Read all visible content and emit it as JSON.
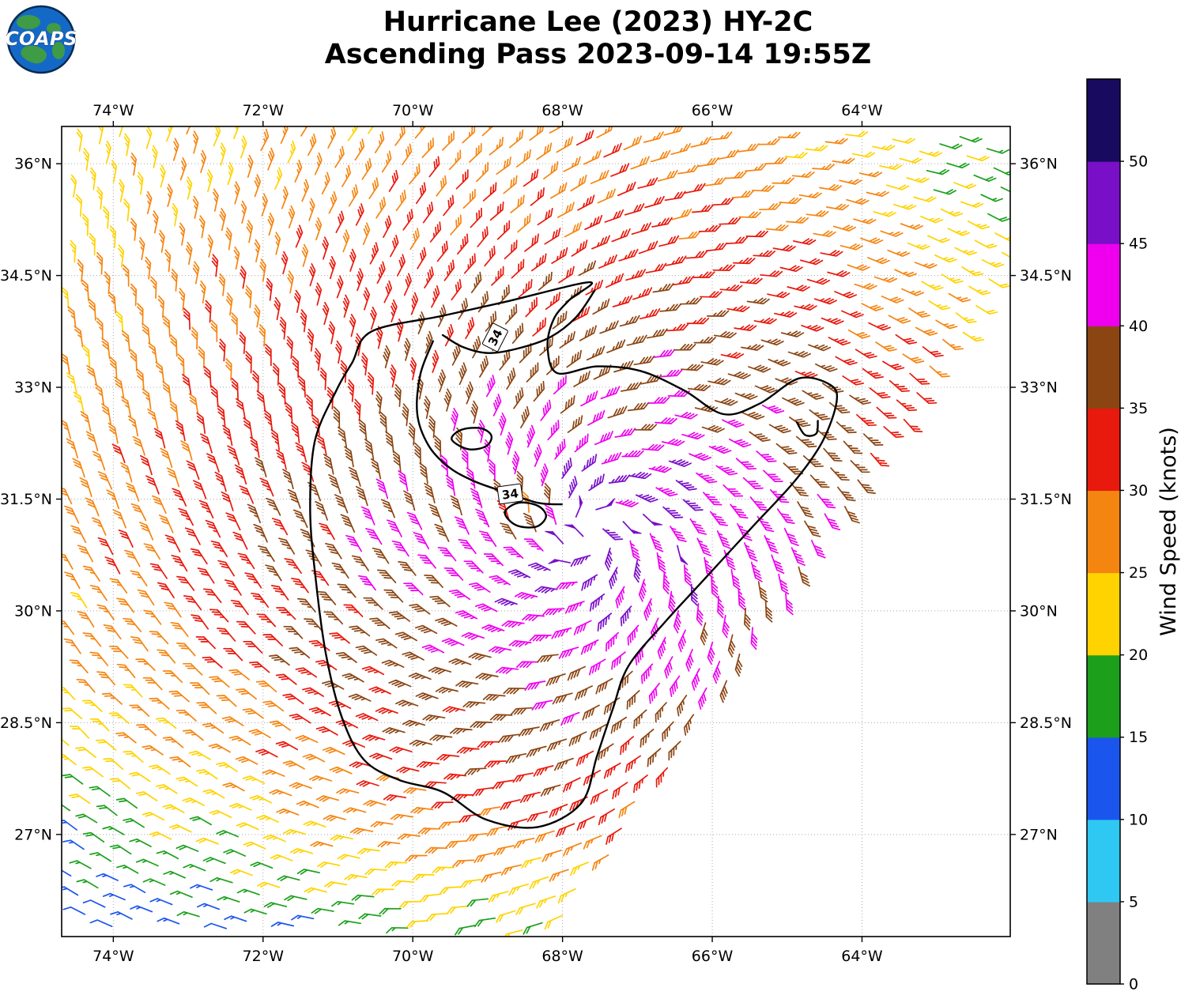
{
  "logo": {
    "text": "COAPS"
  },
  "title": {
    "line1": "Hurricane Lee (2023) HY-2C",
    "line2": "Ascending Pass 2023-09-14 19:55Z"
  },
  "chart_data": {
    "type": "scatter",
    "subtype": "wind-barb-field",
    "grid": true,
    "projection": {
      "lon_range": [
        -74.69,
        -62.02
      ],
      "lat_range": [
        25.63,
        36.5
      ]
    },
    "x_axis": {
      "ticks": [
        {
          "value": -74,
          "label": "74°W"
        },
        {
          "value": -72,
          "label": "72°W"
        },
        {
          "value": -70,
          "label": "70°W"
        },
        {
          "value": -68,
          "label": "68°W"
        },
        {
          "value": -66,
          "label": "66°W"
        },
        {
          "value": -64,
          "label": "64°W"
        }
      ]
    },
    "y_axis": {
      "ticks": [
        {
          "value": 36,
          "label": "36°N"
        },
        {
          "value": 34.5,
          "label": "34.5°N"
        },
        {
          "value": 33,
          "label": "33°N"
        },
        {
          "value": 31.5,
          "label": "31.5°N"
        },
        {
          "value": 30,
          "label": "30°N"
        },
        {
          "value": 28.5,
          "label": "28.5°N"
        },
        {
          "value": 27,
          "label": "27°N"
        }
      ]
    },
    "colorbar": {
      "label": "Wind Speed (knots)",
      "tick_values": [
        0,
        5,
        10,
        15,
        20,
        25,
        30,
        35,
        40,
        45,
        50
      ],
      "bins": [
        {
          "range": [
            0,
            5
          ],
          "color": "#808080"
        },
        {
          "range": [
            5,
            10
          ],
          "color": "#2FC8F2"
        },
        {
          "range": [
            10,
            15
          ],
          "color": "#1A55EE"
        },
        {
          "range": [
            15,
            20
          ],
          "color": "#1CA01C"
        },
        {
          "range": [
            20,
            25
          ],
          "color": "#FFD300"
        },
        {
          "range": [
            25,
            30
          ],
          "color": "#F58511"
        },
        {
          "range": [
            30,
            35
          ],
          "color": "#E8190D"
        },
        {
          "range": [
            35,
            40
          ],
          "color": "#8B4513"
        },
        {
          "range": [
            40,
            45
          ],
          "color": "#EE00EE"
        },
        {
          "range": [
            45,
            50
          ],
          "color": "#7A0FC8"
        },
        {
          "range": [
            50,
            55
          ],
          "color": "#180A5E"
        }
      ]
    },
    "wind_field": {
      "rotation": "counterclockwise",
      "center": {
        "lon": -67.6,
        "lat": 31.05
      },
      "base_speed_kt": 47.5,
      "decay": {
        "east": [
          1.2,
          0.5
        ],
        "west": [
          3.3,
          -0.05
        ],
        "north": [
          4.4,
          -0.13
        ],
        "south": [
          2.6,
          0.5
        ]
      },
      "eye": {
        "lon": -68.5,
        "lat": 31.3,
        "min_speed_kt": 26,
        "slope_kt_per_deg": 38
      },
      "inflow_deg": 25,
      "speed_jitter_kt": 2.4
    },
    "swath": {
      "right_edge_lon_at_lat": [
        [
          -68.08,
          25.67
        ],
        [
          -61.94,
          34.7
        ]
      ]
    },
    "contours": {
      "level_kt": 34,
      "paths": [
        {
          "closed": true,
          "points": [
            [
              -67.64,
              34.41
            ],
            [
              -68.75,
              34.15
            ],
            [
              -69.6,
              33.96
            ],
            [
              -70.55,
              33.75
            ],
            [
              -70.81,
              33.33
            ],
            [
              -71.02,
              32.96
            ],
            [
              -71.31,
              32.27
            ],
            [
              -71.37,
              31.32
            ],
            [
              -71.29,
              30.37
            ],
            [
              -71.16,
              29.42
            ],
            [
              -70.95,
              28.58
            ],
            [
              -70.65,
              28.0
            ],
            [
              -70.18,
              27.73
            ],
            [
              -69.6,
              27.57
            ],
            [
              -69.02,
              27.2
            ],
            [
              -68.33,
              27.1
            ],
            [
              -67.75,
              27.42
            ],
            [
              -67.54,
              28.05
            ],
            [
              -67.33,
              28.68
            ],
            [
              -67.12,
              29.26
            ],
            [
              -66.64,
              29.84
            ],
            [
              -66.11,
              30.42
            ],
            [
              -65.48,
              31.11
            ],
            [
              -64.9,
              31.74
            ],
            [
              -64.53,
              32.27
            ],
            [
              -64.34,
              32.8
            ],
            [
              -64.42,
              33.03
            ],
            [
              -64.84,
              33.12
            ],
            [
              -65.37,
              32.78
            ],
            [
              -65.85,
              32.64
            ],
            [
              -66.38,
              32.96
            ],
            [
              -66.96,
              33.22
            ],
            [
              -67.54,
              33.28
            ],
            [
              -68.07,
              33.19
            ],
            [
              -68.2,
              33.54
            ],
            [
              -68.12,
              33.91
            ],
            [
              -67.91,
              34.17
            ]
          ]
        },
        {
          "closed": false,
          "points": [
            [
              -67.57,
              34.3
            ],
            [
              -67.82,
              33.94
            ],
            [
              -68.17,
              33.67
            ],
            [
              -68.6,
              33.52
            ],
            [
              -68.99,
              33.46
            ],
            [
              -69.33,
              33.54
            ],
            [
              -69.6,
              33.7
            ]
          ]
        },
        {
          "closed": false,
          "points": [
            [
              -69.73,
              33.62
            ],
            [
              -69.9,
              33.17
            ],
            [
              -69.94,
              32.64
            ],
            [
              -69.79,
              32.22
            ],
            [
              -69.52,
              31.93
            ],
            [
              -69.18,
              31.74
            ],
            [
              -68.76,
              31.59
            ],
            [
              -68.33,
              31.45
            ],
            [
              -68.01,
              31.43
            ]
          ]
        },
        {
          "closed": true,
          "points": [
            [
              -69.48,
              32.3
            ],
            [
              -69.35,
              32.43
            ],
            [
              -69.09,
              32.45
            ],
            [
              -68.95,
              32.35
            ],
            [
              -69.02,
              32.21
            ],
            [
              -69.26,
              32.17
            ]
          ]
        },
        {
          "closed": true,
          "points": [
            [
              -68.77,
              31.32
            ],
            [
              -68.59,
              31.45
            ],
            [
              -68.33,
              31.41
            ],
            [
              -68.22,
              31.27
            ],
            [
              -68.35,
              31.13
            ],
            [
              -68.62,
              31.15
            ]
          ]
        },
        {
          "closed": false,
          "points": [
            [
              -64.87,
              32.53
            ],
            [
              -64.76,
              32.36
            ],
            [
              -64.61,
              32.38
            ],
            [
              -64.59,
              32.55
            ]
          ]
        }
      ],
      "labels": [
        {
          "text": "34",
          "lon": -68.9,
          "lat": 33.67,
          "rotation": -63
        },
        {
          "text": "34",
          "lon": -68.7,
          "lat": 31.57,
          "rotation": -8
        }
      ]
    }
  }
}
